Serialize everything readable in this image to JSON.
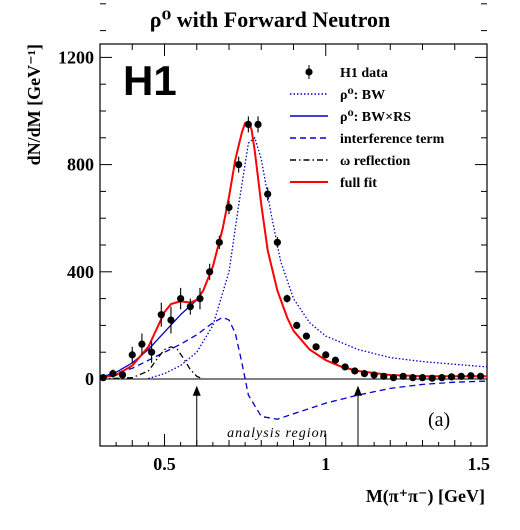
{
  "chart_data": {
    "type": "scatter",
    "title": "ρ⁰ with Forward Neutron",
    "logo": "H1",
    "panel_label": "(a)",
    "xlabel": "M(π⁺π⁻) [GeV]",
    "ylabel": "dN/dM [GeV⁻¹]",
    "xlim": [
      0.3,
      1.5
    ],
    "ylim": [
      -250,
      1250
    ],
    "xticks": [
      0.5,
      1,
      1.5
    ],
    "xtick_labels": [
      "0.5",
      "1",
      "1.5"
    ],
    "yticks": [
      0,
      400,
      800,
      1200
    ],
    "ytick_labels": [
      "0",
      "400",
      "800",
      "1200"
    ],
    "grid": false,
    "legend_position": "top-right",
    "legend": [
      "H1 data",
      "ρ⁰: BW",
      "ρ⁰: BW×RS",
      "interference term",
      "ω reflection",
      "full fit"
    ],
    "annotation": {
      "text": "analysis region",
      "range": [
        0.6,
        1.1
      ]
    },
    "data_points": {
      "name": "H1 data",
      "x": [
        0.31,
        0.34,
        0.37,
        0.4,
        0.43,
        0.46,
        0.49,
        0.52,
        0.55,
        0.58,
        0.61,
        0.64,
        0.67,
        0.7,
        0.73,
        0.76,
        0.79,
        0.82,
        0.85,
        0.88,
        0.91,
        0.94,
        0.97,
        1.0,
        1.03,
        1.06,
        1.09,
        1.12,
        1.15,
        1.18,
        1.21,
        1.24,
        1.27,
        1.3,
        1.33,
        1.36,
        1.39,
        1.42,
        1.45,
        1.48
      ],
      "y": [
        5,
        20,
        15,
        90,
        130,
        100,
        240,
        220,
        300,
        270,
        300,
        400,
        510,
        640,
        800,
        950,
        950,
        690,
        510,
        300,
        200,
        160,
        120,
        90,
        70,
        45,
        30,
        20,
        15,
        10,
        5,
        10,
        5,
        5,
        3,
        5,
        8,
        10,
        12,
        10
      ],
      "err": [
        10,
        15,
        15,
        30,
        40,
        40,
        45,
        50,
        40,
        30,
        40,
        30,
        25,
        25,
        30,
        30,
        30,
        25,
        20,
        15,
        10,
        10,
        10,
        8,
        8,
        6,
        5,
        5,
        5,
        5,
        5,
        5,
        5,
        5,
        5,
        5,
        5,
        5,
        5,
        5
      ]
    },
    "curves": [
      {
        "name": "full fit",
        "color": "#ff0000",
        "style": "solid",
        "x": [
          0.3,
          0.35,
          0.4,
          0.45,
          0.5,
          0.52,
          0.55,
          0.58,
          0.6,
          0.62,
          0.65,
          0.68,
          0.7,
          0.72,
          0.74,
          0.75,
          0.76,
          0.77,
          0.78,
          0.8,
          0.82,
          0.85,
          0.88,
          0.9,
          0.95,
          1.0,
          1.05,
          1.1,
          1.2,
          1.3,
          1.4,
          1.5
        ],
        "y": [
          5,
          15,
          50,
          120,
          250,
          280,
          290,
          285,
          295,
          330,
          420,
          560,
          680,
          820,
          920,
          955,
          960,
          930,
          850,
          650,
          480,
          330,
          230,
          180,
          110,
          70,
          45,
          30,
          15,
          10,
          10,
          10
        ]
      },
      {
        "name": "ρ⁰: BW×RS",
        "color": "#0000cc",
        "style": "solid",
        "x": [
          0.3,
          0.35,
          0.4,
          0.45,
          0.5,
          0.55,
          0.6
        ],
        "y": [
          5,
          25,
          60,
          110,
          175,
          240,
          295
        ]
      },
      {
        "name": "ρ⁰: BW",
        "color": "#0000cc",
        "style": "dotted",
        "x": [
          0.45,
          0.5,
          0.55,
          0.6,
          0.65,
          0.7,
          0.73,
          0.76,
          0.78,
          0.8,
          0.83,
          0.86,
          0.9,
          0.95,
          1.0,
          1.1,
          1.2,
          1.3,
          1.4,
          1.5
        ],
        "y": [
          2,
          20,
          50,
          100,
          200,
          400,
          650,
          880,
          900,
          820,
          620,
          440,
          300,
          210,
          160,
          110,
          80,
          65,
          55,
          45
        ]
      },
      {
        "name": "interference term",
        "color": "#0000cc",
        "style": "dashed",
        "x": [
          0.3,
          0.4,
          0.5,
          0.55,
          0.6,
          0.65,
          0.68,
          0.7,
          0.72,
          0.74,
          0.76,
          0.8,
          0.85,
          0.9,
          1.0,
          1.1,
          1.2,
          1.3,
          1.4,
          1.5
        ],
        "y": [
          5,
          40,
          100,
          130,
          165,
          210,
          230,
          220,
          170,
          60,
          -60,
          -140,
          -150,
          -130,
          -90,
          -60,
          -35,
          -20,
          -12,
          -8
        ]
      },
      {
        "name": "ω reflection",
        "color": "#000000",
        "style": "dashdot",
        "x": [
          0.3,
          0.4,
          0.45,
          0.48,
          0.5,
          0.52,
          0.54,
          0.56,
          0.58,
          0.6,
          0.62
        ],
        "y": [
          0,
          5,
          30,
          80,
          110,
          120,
          110,
          75,
          35,
          10,
          0
        ]
      }
    ]
  }
}
